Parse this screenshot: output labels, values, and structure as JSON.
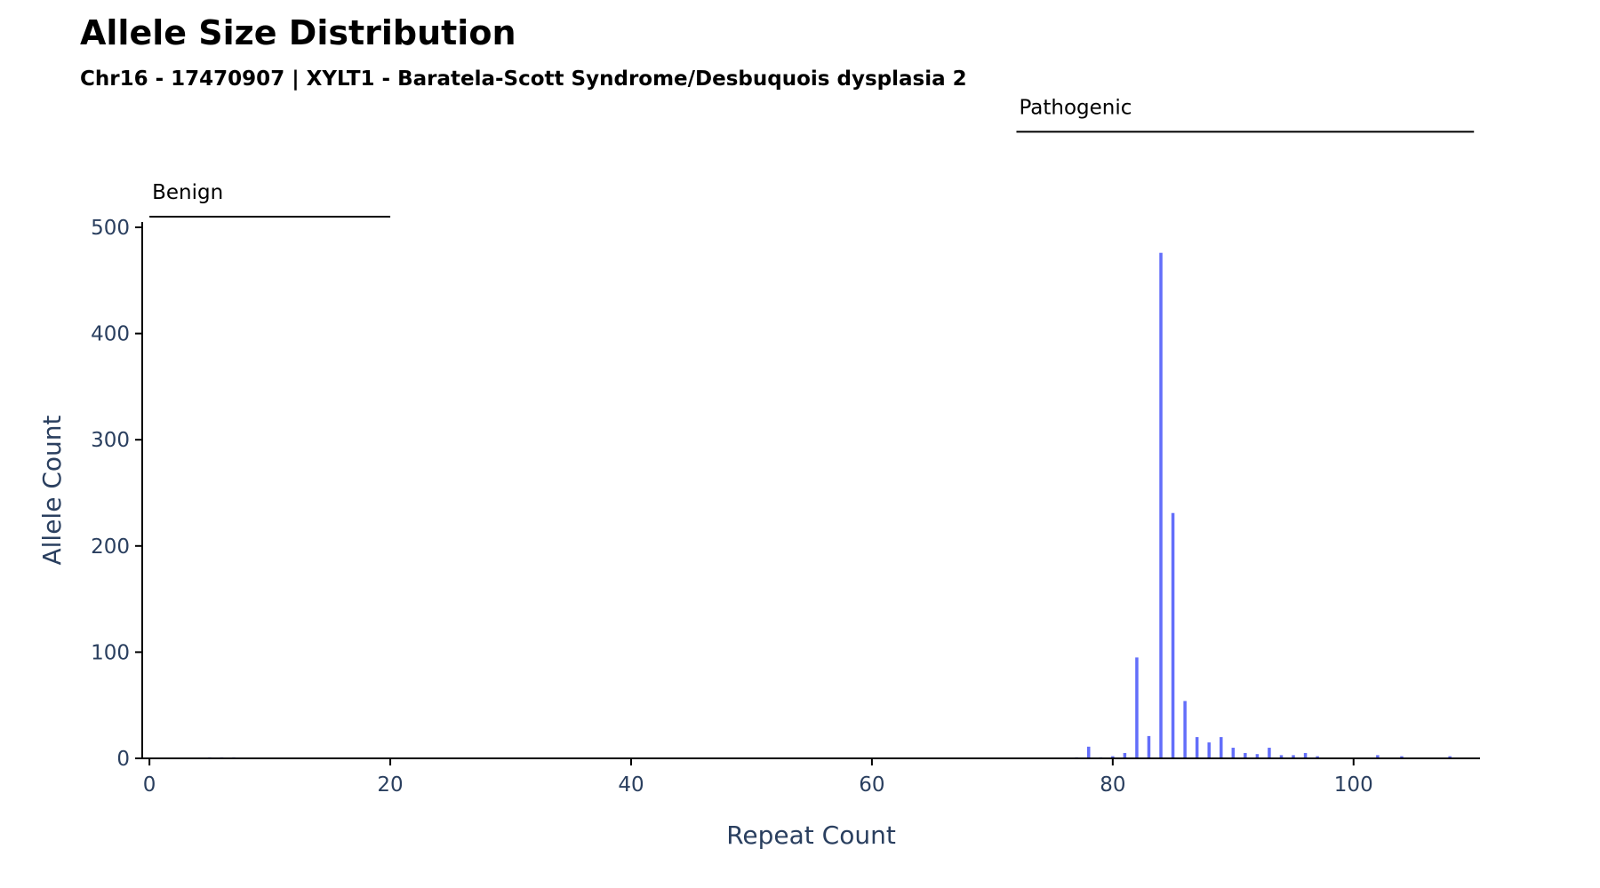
{
  "chart_data": {
    "type": "bar",
    "title": "Allele Size Distribution",
    "subtitle": "Chr16 - 17470907 | XYLT1 - Baratela-Scott Syndrome/Desbuquois dysplasia 2",
    "xlabel": "Repeat Count",
    "ylabel": "Allele Count",
    "xlim": [
      -0.6,
      110.5
    ],
    "ylim": [
      0,
      505
    ],
    "xticks": [
      0,
      20,
      40,
      60,
      80,
      100
    ],
    "yticks": [
      0,
      100,
      200,
      300,
      400,
      500
    ],
    "bar_color": "#636efa",
    "x": [
      5,
      6,
      7,
      77,
      78,
      79,
      80,
      81,
      82,
      83,
      84,
      85,
      86,
      87,
      88,
      89,
      90,
      91,
      92,
      93,
      94,
      95,
      96,
      97,
      102,
      104,
      108
    ],
    "values": [
      1,
      1,
      1,
      1,
      11,
      1,
      2,
      5,
      95,
      21,
      476,
      231,
      54,
      20,
      15,
      20,
      10,
      5,
      4,
      10,
      3,
      3,
      5,
      2,
      3,
      2,
      2
    ],
    "ranges": [
      {
        "label": "Benign",
        "start": 0,
        "end": 20,
        "level": 510
      },
      {
        "label": "Pathogenic",
        "start": 72,
        "end": 110,
        "level": 590
      }
    ]
  }
}
